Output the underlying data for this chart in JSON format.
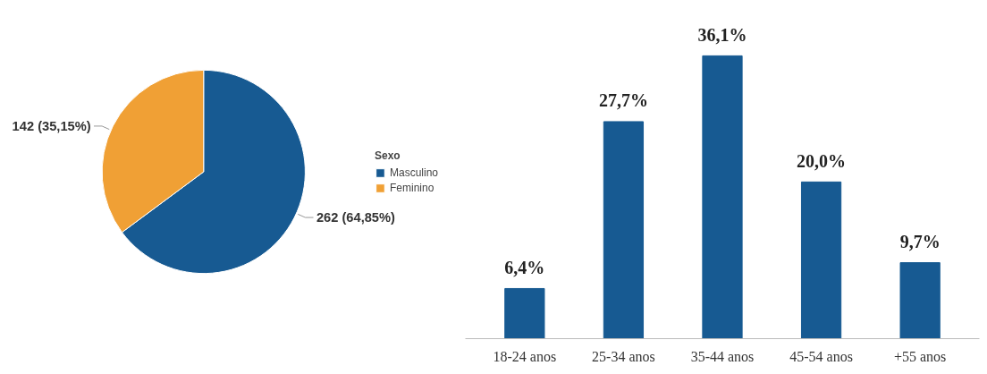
{
  "chart_data": [
    {
      "type": "pie",
      "legend_title": "Sexo",
      "legend": "right",
      "categories": [
        "Masculino",
        "Feminino"
      ],
      "values": [
        262,
        142
      ],
      "colors": [
        "#175a92",
        "#f0a035"
      ],
      "value_labels": [
        "262 (64,85%)",
        "142 (35,15%)"
      ]
    },
    {
      "type": "bar",
      "categories": [
        "18-24 anos",
        "25-34 anos",
        "35-44 anos",
        "45-54 anos",
        "+55 anos"
      ],
      "values": [
        6.4,
        27.7,
        36.1,
        20.0,
        9.7
      ],
      "color": "#175a92",
      "value_labels": [
        "6,4%",
        "27,7%",
        "36,1%",
        "20,0%",
        "9,7%"
      ],
      "grid": false
    }
  ]
}
